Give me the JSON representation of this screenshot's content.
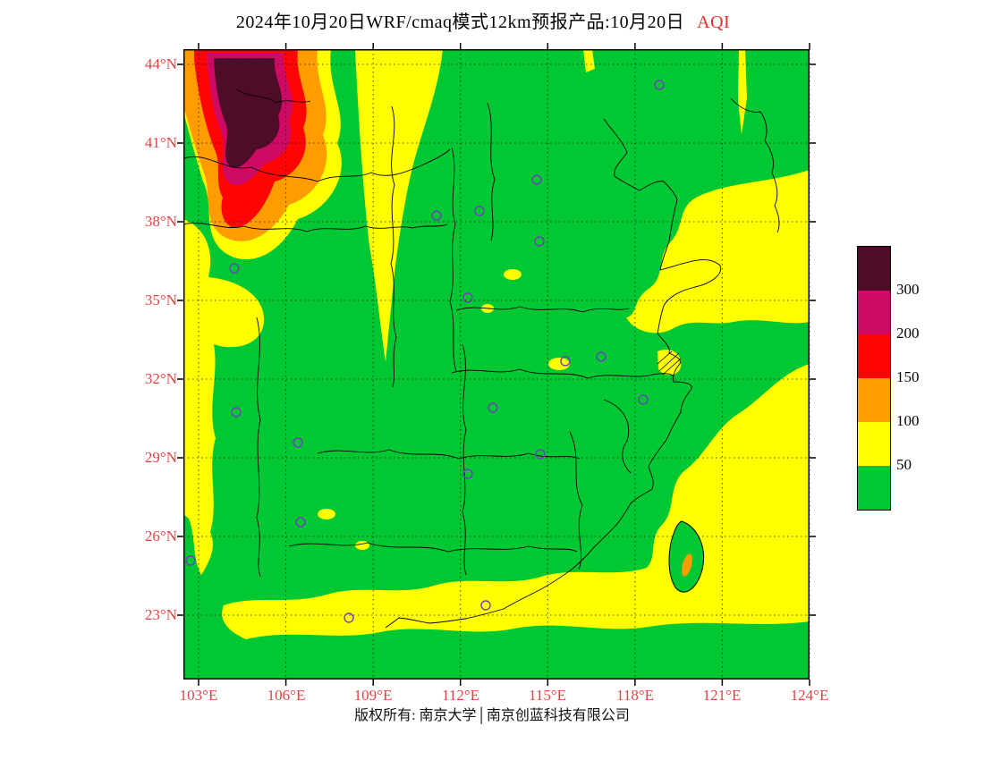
{
  "title": {
    "main": "2024年10月20日WRF/cmaq模式12km预报产品:10月20日",
    "pollutant": "AQI"
  },
  "axes": {
    "lat_ticks": [
      "44°N",
      "41°N",
      "38°N",
      "35°N",
      "32°N",
      "29°N",
      "26°N",
      "23°N"
    ],
    "lon_ticks": [
      "103°E",
      "106°E",
      "109°E",
      "112°E",
      "115°E",
      "118°E",
      "121°E",
      "124°E"
    ]
  },
  "legend": {
    "values": [
      "300",
      "200",
      "150",
      "100",
      "50"
    ],
    "colors": [
      "#4E0C28",
      "#CE0A64",
      "#FE0404",
      "#FF9C00",
      "#FFFF00",
      "#00C832"
    ]
  },
  "map": {
    "marker_color": "#7040C0",
    "boundary_color": "#000000"
  },
  "colors": {
    "axis_labels": "#E04545",
    "title_accent": "#E03030"
  },
  "footer": {
    "text": "版权所有: 南京大学│南京创蓝科技有限公司"
  }
}
